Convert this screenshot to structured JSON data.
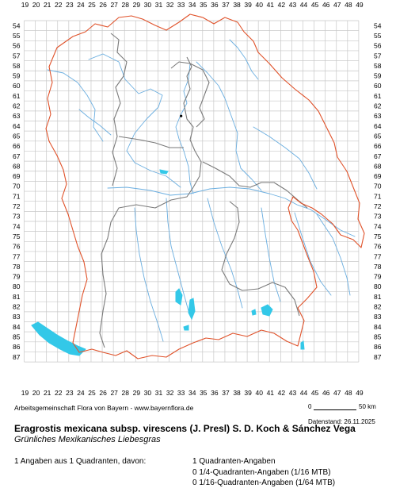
{
  "map": {
    "col_labels": [
      "19",
      "20",
      "21",
      "22",
      "23",
      "24",
      "25",
      "26",
      "27",
      "28",
      "29",
      "30",
      "31",
      "32",
      "33",
      "34",
      "35",
      "36",
      "37",
      "38",
      "39",
      "40",
      "41",
      "42",
      "43",
      "44",
      "45",
      "46",
      "47",
      "48",
      "49"
    ],
    "row_labels": [
      "54",
      "55",
      "56",
      "57",
      "58",
      "59",
      "60",
      "61",
      "62",
      "63",
      "64",
      "65",
      "66",
      "67",
      "68",
      "69",
      "70",
      "71",
      "72",
      "73",
      "74",
      "75",
      "76",
      "77",
      "78",
      "79",
      "80",
      "81",
      "82",
      "83",
      "84",
      "85",
      "86",
      "87"
    ],
    "colors": {
      "grid": "#c8c8c8",
      "state_border": "#e0522a",
      "district_border": "#7a7a7a",
      "rivers": "#6aaee0",
      "lakes": "#33c8e8",
      "occurrence_dot": "#000000"
    },
    "occurrence": {
      "quadrant_col": "33",
      "quadrant_row": "63",
      "symbol": "dot"
    }
  },
  "footer": {
    "credits": "Arbeitsgemeinschaft Flora von Bayern - www.bayernflora.de",
    "scale_start": "0",
    "scale_end": "50 km",
    "datestamp": "Datenstand: 26.11.2025"
  },
  "species": {
    "scientific_name": "Eragrostis mexicana subsp. virescens (J. Presl) S. D. Koch & Sánchez Vega",
    "common_name": "Grünliches Mexikanisches Liebesgras"
  },
  "stats": {
    "summary": "1 Angaben aus 1 Quadranten, davon:",
    "quadrant": "1 Quadranten-Angaben",
    "quarter": "0 1/4-Quadranten-Angaben (1/16 MTB)",
    "sixteenth": "0 1/16-Quadranten-Angaben (1/64 MTB)"
  }
}
